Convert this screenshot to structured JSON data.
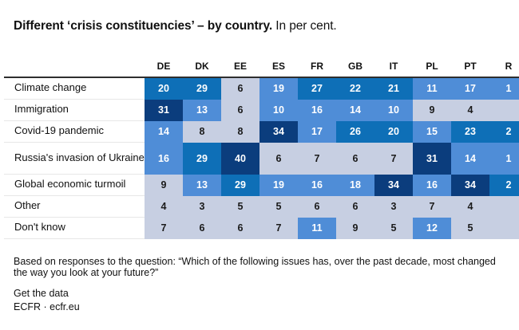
{
  "title": {
    "main": "Different ‘crisis constituencies’ – by country.",
    "suffix": "In per cent."
  },
  "colors": {
    "band1": "#c7cfe2",
    "band2": "#4f8dd7",
    "band3": "#0e6fb7",
    "band4": "#0b3d7d",
    "band1_text": "#1a1a1a",
    "band_text": "#ffffff",
    "rule": "#2e2e2e"
  },
  "chart_data": {
    "type": "heatmap",
    "unit": "per cent",
    "columns": [
      "DE",
      "DK",
      "EE",
      "ES",
      "FR",
      "GB",
      "IT",
      "PL",
      "PT",
      "R"
    ],
    "rows": [
      {
        "label": "Climate change",
        "two_line": false,
        "cells": [
          {
            "v": "20",
            "b": 3
          },
          {
            "v": "29",
            "b": 3
          },
          {
            "v": "6",
            "b": 1
          },
          {
            "v": "19",
            "b": 2
          },
          {
            "v": "27",
            "b": 3
          },
          {
            "v": "22",
            "b": 3
          },
          {
            "v": "21",
            "b": 3
          },
          {
            "v": "11",
            "b": 2
          },
          {
            "v": "17",
            "b": 2
          },
          {
            "v": "1",
            "b": 2
          }
        ]
      },
      {
        "label": "Immigration",
        "two_line": false,
        "cells": [
          {
            "v": "31",
            "b": 4
          },
          {
            "v": "13",
            "b": 2
          },
          {
            "v": "6",
            "b": 1
          },
          {
            "v": "10",
            "b": 2
          },
          {
            "v": "16",
            "b": 2
          },
          {
            "v": "14",
            "b": 2
          },
          {
            "v": "10",
            "b": 2
          },
          {
            "v": "9",
            "b": 1
          },
          {
            "v": "4",
            "b": 1
          },
          {
            "v": "",
            "b": 1
          }
        ]
      },
      {
        "label": "Covid-19 pandemic",
        "two_line": false,
        "cells": [
          {
            "v": "14",
            "b": 2
          },
          {
            "v": "8",
            "b": 1
          },
          {
            "v": "8",
            "b": 1
          },
          {
            "v": "34",
            "b": 4
          },
          {
            "v": "17",
            "b": 2
          },
          {
            "v": "26",
            "b": 3
          },
          {
            "v": "20",
            "b": 3
          },
          {
            "v": "15",
            "b": 2
          },
          {
            "v": "23",
            "b": 3
          },
          {
            "v": "2",
            "b": 3
          }
        ]
      },
      {
        "label": "Russia's invasion of Ukraine",
        "two_line": true,
        "cells": [
          {
            "v": "16",
            "b": 2
          },
          {
            "v": "29",
            "b": 3
          },
          {
            "v": "40",
            "b": 4
          },
          {
            "v": "6",
            "b": 1
          },
          {
            "v": "7",
            "b": 1
          },
          {
            "v": "6",
            "b": 1
          },
          {
            "v": "7",
            "b": 1
          },
          {
            "v": "31",
            "b": 4
          },
          {
            "v": "14",
            "b": 2
          },
          {
            "v": "1",
            "b": 2
          }
        ]
      },
      {
        "label": "Global economic turmoil",
        "two_line": false,
        "cells": [
          {
            "v": "9",
            "b": 1
          },
          {
            "v": "13",
            "b": 2
          },
          {
            "v": "29",
            "b": 3
          },
          {
            "v": "19",
            "b": 2
          },
          {
            "v": "16",
            "b": 2
          },
          {
            "v": "18",
            "b": 2
          },
          {
            "v": "34",
            "b": 4
          },
          {
            "v": "16",
            "b": 2
          },
          {
            "v": "34",
            "b": 4
          },
          {
            "v": "2",
            "b": 3
          }
        ]
      },
      {
        "label": "Other",
        "two_line": false,
        "cells": [
          {
            "v": "4",
            "b": 1
          },
          {
            "v": "3",
            "b": 1
          },
          {
            "v": "5",
            "b": 1
          },
          {
            "v": "5",
            "b": 1
          },
          {
            "v": "6",
            "b": 1
          },
          {
            "v": "6",
            "b": 1
          },
          {
            "v": "3",
            "b": 1
          },
          {
            "v": "7",
            "b": 1
          },
          {
            "v": "4",
            "b": 1
          },
          {
            "v": "",
            "b": 1
          }
        ]
      },
      {
        "label": "Don't know",
        "two_line": false,
        "cells": [
          {
            "v": "7",
            "b": 1
          },
          {
            "v": "6",
            "b": 1
          },
          {
            "v": "6",
            "b": 1
          },
          {
            "v": "7",
            "b": 1
          },
          {
            "v": "11",
            "b": 2
          },
          {
            "v": "9",
            "b": 1
          },
          {
            "v": "5",
            "b": 1
          },
          {
            "v": "12",
            "b": 2
          },
          {
            "v": "5",
            "b": 1
          },
          {
            "v": "",
            "b": 1
          }
        ]
      }
    ]
  },
  "footer": {
    "note": "Based on responses to the question: “Which of the following issues has, over the past decade, most changed the way you look at your future?”",
    "get_data": "Get the data",
    "source": "ECFR · ecfr.eu"
  }
}
